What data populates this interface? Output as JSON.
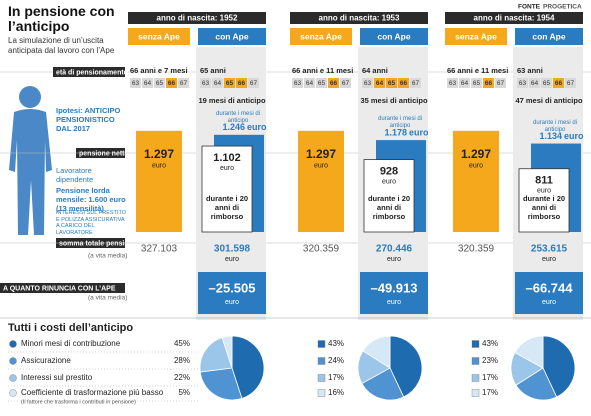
{
  "header": {
    "title": "In pensione con l’anticipo",
    "subtitle": "La simulazione di un’uscita anticipata dal lavoro con l’Ape",
    "source_label": "FONTE",
    "source": "PROGETICA"
  },
  "labels": {
    "retirement_age": "età di pensionamento",
    "hypothesis": "Ipotesi: ANTICIPO PENSIONISTICO DAL 2017",
    "net_pension": "pensione netta",
    "worker": "Lavoratore dipendente",
    "gross": "Pensione lorda mensile: 1.600 euro (13 mensilità)",
    "note": "INTERESSI SUL PRESTITO E POLIZZA ASSICURATIVA A CARICO DEL LAVORATORE",
    "total": "somma totale pensioni",
    "life_total": "(a vita media)",
    "renounce": "A QUANTO RINUNCIA CON L’APE",
    "life_renounce": "(a vita media)",
    "costs_title": "Tutti i costi dell’anticipo",
    "without": "senza Ape",
    "with": "con Ape",
    "euro": "euro",
    "during_advance": "durante i mesi di anticipo",
    "during_repay": "durante i 20 anni di rimborso",
    "coefficient_note": "(Il fattore che trasforma i contributi in pensione)"
  },
  "age_scale": [
    63,
    64,
    65,
    66,
    67
  ],
  "groups": [
    {
      "header": "anno di nascita: 1952",
      "without_age": "66 anni e 7 mesi",
      "with_age": "65 anni",
      "without_highlight": [
        66
      ],
      "with_highlight": [
        65,
        66
      ],
      "advance": "19 mesi di anticipo",
      "without_pension": 1297,
      "without_pension_label": "1.297",
      "with_pension": 1102,
      "with_pension_label": "1.102",
      "advance_pension": 1246,
      "advance_pension_label": "1.246",
      "without_total": "327.103",
      "with_total": "301.598",
      "loss": "–25.505"
    },
    {
      "header": "anno di nascita: 1953",
      "without_age": "66 anni e 11 mesi",
      "with_age": "64 anni",
      "without_highlight": [
        66
      ],
      "with_highlight": [
        64,
        65,
        66
      ],
      "advance": "35 mesi di anticipo",
      "without_pension": 1297,
      "without_pension_label": "1.297",
      "with_pension": 928,
      "with_pension_label": "928",
      "advance_pension": 1178,
      "advance_pension_label": "1.178",
      "without_total": "320.359",
      "with_total": "270.446",
      "loss": "–49.913"
    },
    {
      "header": "anno di nascita: 1954",
      "without_age": "66 anni e 11 mesi",
      "with_age": "63 anni",
      "without_highlight": [
        66
      ],
      "with_highlight": [
        66
      ],
      "advance": "47 mesi di anticipo",
      "without_pension": 1297,
      "without_pension_label": "1.297",
      "with_pension": 811,
      "with_pension_label": "811",
      "advance_pension": 1134,
      "advance_pension_label": "1.134",
      "without_total": "320.359",
      "with_total": "253.615",
      "loss": "–66.744"
    }
  ],
  "chart_data": [
    {
      "type": "pie",
      "categories": [
        "Minori mesi di contribuzione",
        "Assicurazione",
        "Interessi sul prestito",
        "Coefficiente di trasformazione più basso"
      ],
      "values": [
        45,
        28,
        22,
        5
      ],
      "value_labels": [
        "45%",
        "28%",
        "22%",
        "5%"
      ],
      "colors": [
        "#1f6bb0",
        "#4f93d2",
        "#9cc5ea",
        "#d6e7f6"
      ]
    },
    {
      "type": "pie",
      "values": [
        43,
        24,
        17,
        16
      ],
      "value_labels": [
        "43%",
        "24%",
        "17%",
        "16%"
      ],
      "colors": [
        "#1f6bb0",
        "#4f93d2",
        "#9cc5ea",
        "#d6e7f6"
      ]
    },
    {
      "type": "pie",
      "values": [
        43,
        23,
        17,
        17
      ],
      "value_labels": [
        "43%",
        "23%",
        "17%",
        "17%"
      ],
      "colors": [
        "#1f6bb0",
        "#4f93d2",
        "#9cc5ea",
        "#d6e7f6"
      ]
    }
  ]
}
